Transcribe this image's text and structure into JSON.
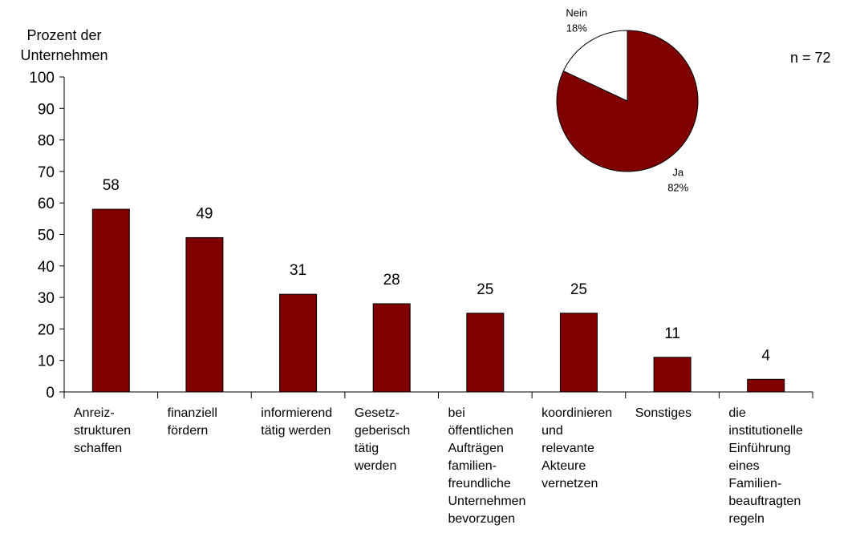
{
  "chart_data": [
    {
      "type": "bar",
      "ylabel": [
        "Prozent der",
        "Unternehmen"
      ],
      "categories": [
        [
          "Anreiz-",
          "strukturen",
          "schaffen"
        ],
        [
          "finanziell",
          "fördern"
        ],
        [
          "informierend",
          "tätig werden"
        ],
        [
          "Gesetz-",
          "geberisch",
          "tätig",
          "werden"
        ],
        [
          "bei",
          "öffentlichen",
          "Aufträgen",
          "familien-",
          "freundliche",
          "Unternehmen",
          "bevorzugen"
        ],
        [
          "koordinieren",
          "und",
          "relevante",
          "Akteure",
          "vernetzen"
        ],
        [
          "Sonstiges"
        ],
        [
          "die",
          "institutionelle",
          "Einführung",
          "eines",
          "Familien-",
          "beauftragten",
          "regeln"
        ]
      ],
      "values": [
        58,
        49,
        31,
        28,
        25,
        25,
        11,
        4
      ],
      "color": "#800000",
      "ylim": [
        0,
        100
      ],
      "yticks": [
        0,
        10,
        20,
        30,
        40,
        50,
        60,
        70,
        80,
        90,
        100
      ],
      "annotation": "n = 72"
    },
    {
      "type": "pie",
      "categories": [
        "Ja",
        "Nein"
      ],
      "values": [
        82,
        18
      ],
      "value_labels": [
        "82%",
        "18%"
      ],
      "colors": [
        "#800000",
        "#ffffff"
      ]
    }
  ]
}
